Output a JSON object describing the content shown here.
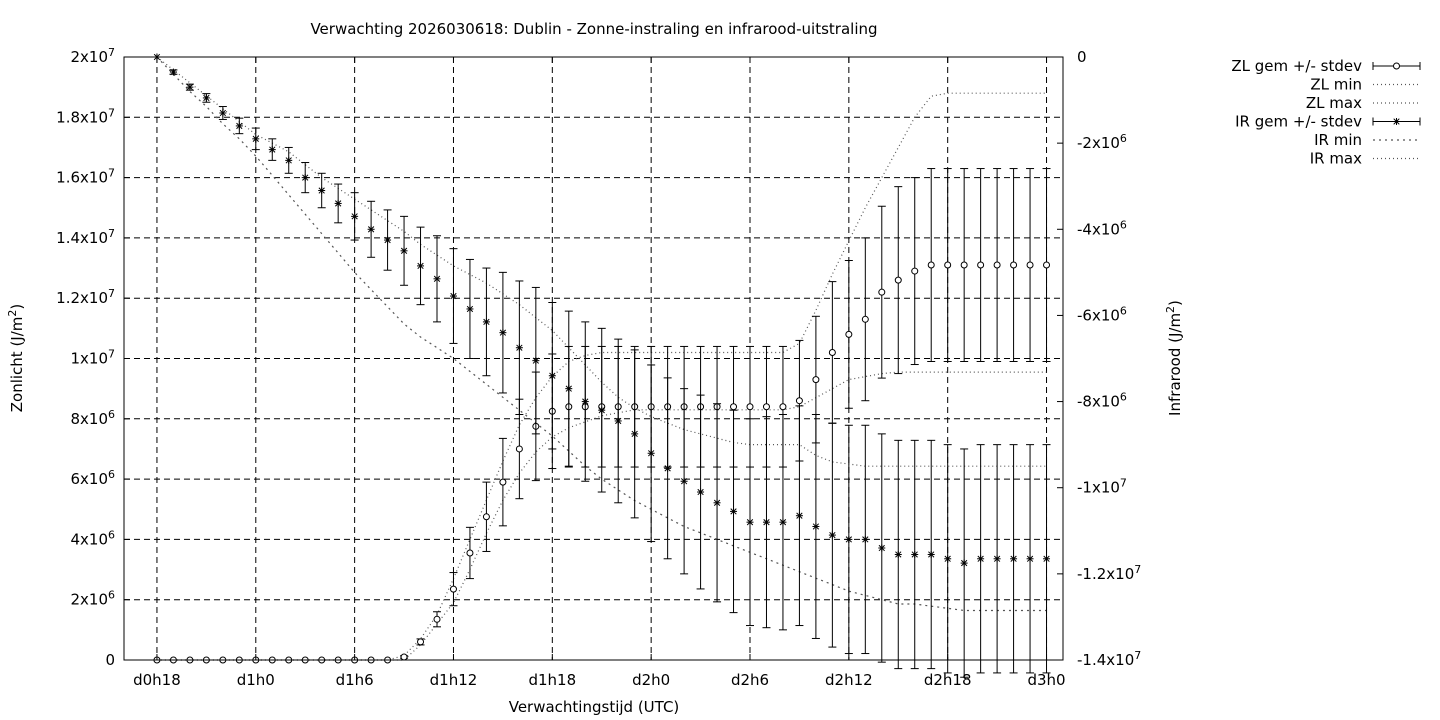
{
  "chart_data": {
    "type": "line",
    "title": "Verwachting 2026030618: Dublin - Zonne-instraling en infrarood-uitstraling",
    "xlabel": "Verwachtingstijd (UTC)",
    "ylabel_left": "Zonlicht (J/m2)",
    "ylabel_right": "Infrarood (J/m2)",
    "x_unit": "hours since forecast base (2026030618)",
    "xlim": [
      -2,
      55
    ],
    "xticks": [
      {
        "x": 0,
        "label": "d0h18"
      },
      {
        "x": 6,
        "label": "d1h0"
      },
      {
        "x": 12,
        "label": "d1h6"
      },
      {
        "x": 18,
        "label": "d1h12"
      },
      {
        "x": 24,
        "label": "d1h18"
      },
      {
        "x": 30,
        "label": "d2h0"
      },
      {
        "x": 36,
        "label": "d2h6"
      },
      {
        "x": 42,
        "label": "d2h12"
      },
      {
        "x": 48,
        "label": "d2h18"
      },
      {
        "x": 54,
        "label": "d3h0"
      }
    ],
    "ylim_left": [
      0,
      20000000
    ],
    "yticks_left": [
      {
        "v": 0,
        "m": "0",
        "e": ""
      },
      {
        "v": 2000000,
        "m": "2x10",
        "e": "6"
      },
      {
        "v": 4000000,
        "m": "4x10",
        "e": "6"
      },
      {
        "v": 6000000,
        "m": "6x10",
        "e": "6"
      },
      {
        "v": 8000000,
        "m": "8x10",
        "e": "6"
      },
      {
        "v": 10000000,
        "m": "1x10",
        "e": "7"
      },
      {
        "v": 12000000,
        "m": "1.2x10",
        "e": "7"
      },
      {
        "v": 14000000,
        "m": "1.4x10",
        "e": "7"
      },
      {
        "v": 16000000,
        "m": "1.6x10",
        "e": "7"
      },
      {
        "v": 18000000,
        "m": "1.8x10",
        "e": "7"
      },
      {
        "v": 20000000,
        "m": "2x10",
        "e": "7"
      }
    ],
    "ylim_right": [
      -14000000,
      0
    ],
    "yticks_right": [
      {
        "v": 0,
        "m": "0",
        "e": ""
      },
      {
        "v": -2000000,
        "m": "-2x10",
        "e": "6"
      },
      {
        "v": -4000000,
        "m": "-4x10",
        "e": "6"
      },
      {
        "v": -6000000,
        "m": "-6x10",
        "e": "6"
      },
      {
        "v": -8000000,
        "m": "-8x10",
        "e": "6"
      },
      {
        "v": -10000000,
        "m": "-1x10",
        "e": "7"
      },
      {
        "v": -12000000,
        "m": "-1.2x10",
        "e": "7"
      },
      {
        "v": -14000000,
        "m": "-1.4x10",
        "e": "7"
      }
    ],
    "grid": true,
    "legend_position": "outside top-right",
    "legend": [
      {
        "label": "ZL gem +/- stdev",
        "style": "errorbar-open-circle"
      },
      {
        "label": "ZL min",
        "style": "dotted"
      },
      {
        "label": "ZL max",
        "style": "dotted"
      },
      {
        "label": "IR gem +/- stdev",
        "style": "errorbar-star"
      },
      {
        "label": "IR min",
        "style": "dotted"
      },
      {
        "label": "IR max",
        "style": "dotted"
      }
    ],
    "x": [
      0,
      1,
      2,
      3,
      4,
      5,
      6,
      7,
      8,
      9,
      10,
      11,
      12,
      13,
      14,
      15,
      16,
      17,
      18,
      19,
      20,
      21,
      22,
      23,
      24,
      25,
      26,
      27,
      28,
      29,
      30,
      31,
      32,
      33,
      34,
      35,
      36,
      37,
      38,
      39,
      40,
      41,
      42,
      43,
      44,
      45,
      46,
      47,
      48,
      49,
      50,
      51,
      52,
      53,
      54
    ],
    "series": [
      {
        "name": "ZL gem +/- stdev",
        "axis": "left",
        "mean": [
          0,
          0,
          0,
          0,
          0,
          0,
          0,
          0,
          0,
          0,
          0,
          0,
          0,
          0,
          0,
          100000,
          600000,
          1350000,
          2350000,
          3550000,
          4750000,
          5900000,
          7000000,
          7750000,
          8250000,
          8400000,
          8400000,
          8400000,
          8400000,
          8400000,
          8400000,
          8400000,
          8400000,
          8400000,
          8400000,
          8400000,
          8400000,
          8400000,
          8400000,
          8600000,
          9300000,
          10200000,
          10800000,
          11300000,
          12200000,
          12600000,
          12900000,
          13100000,
          13100000,
          13100000,
          13100000,
          13100000,
          13100000,
          13100000,
          13100000
        ],
        "stdev": [
          0,
          0,
          0,
          0,
          0,
          0,
          0,
          0,
          0,
          0,
          0,
          0,
          0,
          0,
          0,
          40000,
          100000,
          250000,
          550000,
          850000,
          1150000,
          1450000,
          1650000,
          1800000,
          1900000,
          2000000,
          2000000,
          2000000,
          2000000,
          2000000,
          2000000,
          2000000,
          2000000,
          2000000,
          2000000,
          2000000,
          2000000,
          2000000,
          2000000,
          2000000,
          2100000,
          2350000,
          2450000,
          2700000,
          2850000,
          3100000,
          3100000,
          3200000,
          3200000,
          3200000,
          3200000,
          3200000,
          3200000,
          3200000,
          3200000
        ]
      },
      {
        "name": "ZL min",
        "axis": "left",
        "values": [
          0,
          0,
          0,
          0,
          0,
          0,
          0,
          0,
          0,
          0,
          0,
          0,
          0,
          0,
          0,
          0,
          500000,
          1200000,
          1900000,
          3000000,
          4200000,
          5300000,
          6200000,
          6900000,
          7400000,
          7700000,
          7900000,
          8100000,
          8200000,
          8300000,
          8300000,
          8300000,
          8300000,
          8300000,
          8300000,
          8300000,
          8300000,
          8300000,
          8300000,
          8400000,
          8700000,
          9000000,
          9300000,
          9400000,
          9500000,
          9550000,
          9550000,
          9550000,
          9550000,
          9550000,
          9550000,
          9550000,
          9550000,
          9550000,
          9550000
        ]
      },
      {
        "name": "ZL max",
        "axis": "left",
        "values": [
          0,
          0,
          0,
          0,
          0,
          0,
          0,
          0,
          0,
          0,
          0,
          0,
          0,
          0,
          0,
          150000,
          700000,
          1500000,
          2700000,
          4000000,
          5300000,
          6600000,
          7800000,
          8700000,
          9400000,
          9900000,
          10100000,
          10200000,
          10200000,
          10200000,
          10200000,
          10200000,
          10200000,
          10200000,
          10200000,
          10200000,
          10200000,
          10200000,
          10200000,
          10500000,
          11600000,
          12800000,
          13900000,
          15000000,
          16000000,
          17000000,
          18000000,
          18700000,
          18800000,
          18800000,
          18800000,
          18800000,
          18800000,
          18800000,
          18800000
        ]
      },
      {
        "name": "IR gem +/- stdev",
        "axis": "right",
        "mean": [
          0,
          -350000,
          -700000,
          -950000,
          -1300000,
          -1600000,
          -1900000,
          -2150000,
          -2400000,
          -2800000,
          -3100000,
          -3400000,
          -3700000,
          -4000000,
          -4250000,
          -4500000,
          -4850000,
          -5150000,
          -5550000,
          -5850000,
          -6150000,
          -6400000,
          -6750000,
          -7050000,
          -7400000,
          -7700000,
          -8000000,
          -8200000,
          -8450000,
          -8750000,
          -9200000,
          -9550000,
          -9850000,
          -10100000,
          -10350000,
          -10550000,
          -10800000,
          -10800000,
          -10800000,
          -10650000,
          -10900000,
          -11100000,
          -11200000,
          -11200000,
          -11400000,
          -11550000,
          -11550000,
          -11550000,
          -11650000,
          -11750000,
          -11650000,
          -11650000,
          -11650000,
          -11650000,
          -11650000
        ],
        "stdev": [
          0,
          50000,
          70000,
          100000,
          150000,
          180000,
          250000,
          250000,
          300000,
          350000,
          400000,
          450000,
          550000,
          650000,
          700000,
          800000,
          900000,
          1000000,
          1100000,
          1150000,
          1250000,
          1400000,
          1550000,
          1700000,
          1700000,
          1800000,
          1850000,
          1900000,
          1900000,
          1950000,
          2050000,
          2100000,
          2150000,
          2250000,
          2300000,
          2350000,
          2400000,
          2450000,
          2500000,
          2550000,
          2600000,
          2600000,
          2650000,
          2650000,
          2650000,
          2650000,
          2650000,
          2650000,
          2650000,
          2650000,
          2650000,
          2650000,
          2650000,
          2650000,
          2650000
        ]
      },
      {
        "name": "IR min",
        "axis": "right",
        "values": [
          0,
          -400000,
          -800000,
          -1150000,
          -1550000,
          -1900000,
          -2300000,
          -2750000,
          -3200000,
          -3650000,
          -4100000,
          -4550000,
          -5000000,
          -5400000,
          -5800000,
          -6200000,
          -6500000,
          -6750000,
          -7000000,
          -7300000,
          -7600000,
          -7900000,
          -8200000,
          -8500000,
          -8800000,
          -9150000,
          -9500000,
          -9800000,
          -10050000,
          -10300000,
          -10500000,
          -10700000,
          -10900000,
          -11050000,
          -11200000,
          -11350000,
          -11500000,
          -11650000,
          -11800000,
          -11950000,
          -12100000,
          -12250000,
          -12400000,
          -12500000,
          -12600000,
          -12700000,
          -12700000,
          -12750000,
          -12800000,
          -12850000,
          -12850000,
          -12850000,
          -12850000,
          -12850000,
          -12850000
        ]
      },
      {
        "name": "IR max",
        "axis": "right",
        "values": [
          0,
          -300000,
          -600000,
          -900000,
          -1200000,
          -1500000,
          -1800000,
          -2000000,
          -2200000,
          -2500000,
          -2800000,
          -3050000,
          -3300000,
          -3550000,
          -3800000,
          -4050000,
          -4350000,
          -4600000,
          -4850000,
          -5050000,
          -5250000,
          -5500000,
          -5750000,
          -6050000,
          -6350000,
          -6750000,
          -7150000,
          -7550000,
          -7900000,
          -8150000,
          -8350000,
          -8500000,
          -8650000,
          -8750000,
          -8850000,
          -8950000,
          -9000000,
          -9000000,
          -9000000,
          -9000000,
          -9250000,
          -9400000,
          -9450000,
          -9500000,
          -9500000,
          -9500000,
          -9500000,
          -9500000,
          -9500000,
          -9500000,
          -9500000,
          -9500000,
          -9500000,
          -9500000,
          -9500000
        ]
      }
    ]
  }
}
